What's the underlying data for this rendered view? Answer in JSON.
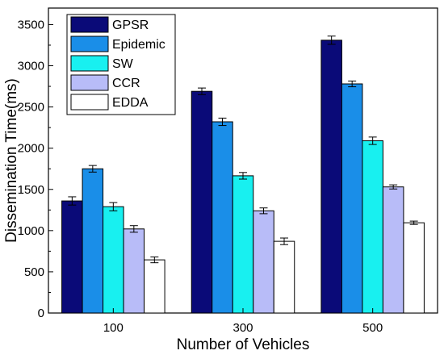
{
  "chart_data": {
    "type": "bar",
    "title": "",
    "xlabel": "Number of Vehicles",
    "ylabel": "Dissemination Time(ms)",
    "categories": [
      "100",
      "300",
      "500"
    ],
    "ylim": [
      0,
      3700
    ],
    "yticks": [
      0,
      500,
      1000,
      1500,
      2000,
      2500,
      3000,
      3500
    ],
    "grid": false,
    "legend_position": "top-left",
    "series": [
      {
        "name": "GPSR",
        "color": "#0a0a78",
        "values": [
          1360,
          2690,
          3310
        ],
        "errors": [
          50,
          40,
          50
        ]
      },
      {
        "name": "Epidemic",
        "color": "#1a8ee8",
        "values": [
          1750,
          2320,
          2780
        ],
        "errors": [
          40,
          45,
          35
        ]
      },
      {
        "name": "SW",
        "color": "#18f0f0",
        "values": [
          1290,
          1665,
          2090
        ],
        "errors": [
          50,
          40,
          45
        ]
      },
      {
        "name": "CCR",
        "color": "#b8bcf8",
        "values": [
          1020,
          1240,
          1530
        ],
        "errors": [
          40,
          35,
          25
        ]
      },
      {
        "name": "EDDA",
        "color": "#ffffff",
        "values": [
          645,
          870,
          1095
        ],
        "errors": [
          35,
          40,
          20
        ]
      }
    ]
  }
}
